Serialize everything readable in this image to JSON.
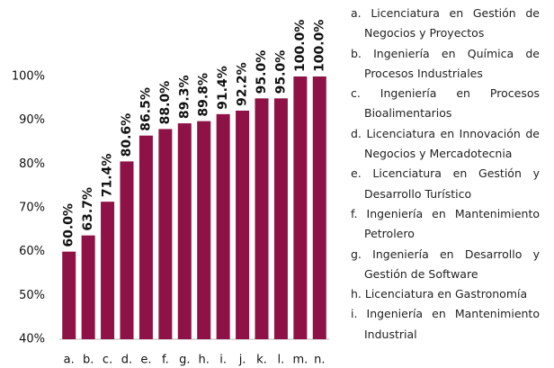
{
  "chart_data": {
    "type": "bar",
    "categories": [
      "a.",
      "b.",
      "c.",
      "d.",
      "e.",
      "f.",
      "g.",
      "h.",
      "i.",
      "j.",
      "k.",
      "l.",
      "m.",
      "n."
    ],
    "values": [
      60.0,
      63.7,
      71.4,
      80.6,
      86.5,
      88.0,
      89.3,
      89.8,
      91.4,
      92.2,
      95.0,
      95.0,
      100.0,
      100.0
    ],
    "value_labels": [
      "60.0%",
      "63.7%",
      "71.4%",
      "80.6%",
      "86.5%",
      "88.0%",
      "89.3%",
      "89.8%",
      "91.4%",
      "92.2%",
      "95.0%",
      "95.0%",
      "100.0%",
      "100.0%"
    ],
    "color": "#8e1246",
    "ylim": [
      40,
      100
    ],
    "yticks": [
      {
        "value": 40,
        "label": "40%"
      },
      {
        "value": 50,
        "label": "50%"
      },
      {
        "value": 60,
        "label": "60%"
      },
      {
        "value": 70,
        "label": "70%"
      },
      {
        "value": 80,
        "label": "80%"
      },
      {
        "value": 90,
        "label": "90%"
      },
      {
        "value": 100,
        "label": "100%"
      }
    ],
    "grid": false,
    "notes": [
      "a. Licenciatura en Gestión de Negocios y Proyectos",
      "b. Ingeniería en Química de Procesos Industriales",
      "c. Ingeniería en Procesos Bioalimentarios",
      "d. Licenciatura en Innovación de Negocios y Mercadotecnia",
      "e. Licenciatura en Gestión y Desarrollo Turístico",
      "f. Ingeniería en Mantenimiento Petrolero",
      "g. Ingeniería en Desarrollo y Gestión de Software",
      "h. Licenciatura en Gastronomía",
      "i. Ingeniería en Mantenimiento Industrial"
    ]
  }
}
